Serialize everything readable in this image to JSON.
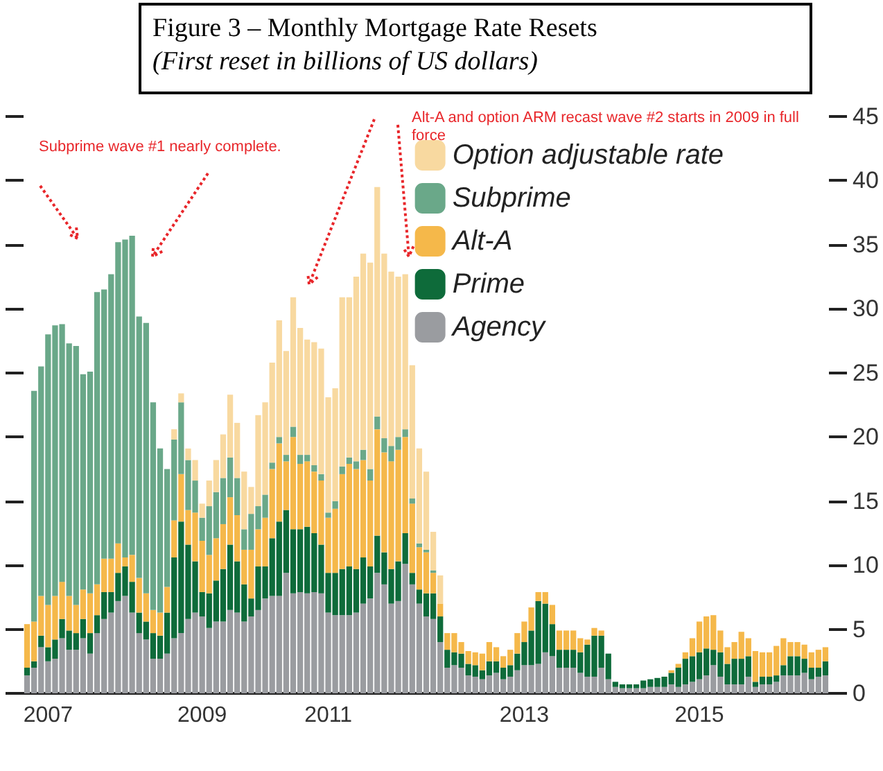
{
  "chart_data": {
    "type": "bar",
    "stacked": true,
    "title": "Figure 3 – Monthly Mortgage Rate Resets",
    "subtitle": "(First reset in billions of US dollars)",
    "categories": [
      null,
      null,
      null,
      "2007",
      null,
      null,
      null,
      null,
      null,
      null,
      null,
      null,
      null,
      null,
      null,
      null,
      null,
      null,
      null,
      null,
      null,
      null,
      null,
      null,
      null,
      "2009",
      null,
      null,
      null,
      null,
      null,
      null,
      null,
      null,
      null,
      null,
      null,
      null,
      null,
      null,
      null,
      null,
      null,
      "2011",
      null,
      null,
      null,
      null,
      null,
      null,
      null,
      null,
      null,
      null,
      null,
      null,
      null,
      null,
      null,
      null,
      null,
      null,
      null,
      null,
      null,
      null,
      null,
      null,
      null,
      null,
      null,
      "2013",
      null,
      null,
      null,
      null,
      null,
      null,
      null,
      null,
      null,
      null,
      null,
      null,
      null,
      null,
      null,
      null,
      null,
      null,
      null,
      null,
      null,
      null,
      null,
      null,
      "2015",
      null,
      null,
      null,
      null,
      null,
      null,
      null,
      null,
      null,
      null,
      null,
      null,
      null,
      null,
      null,
      null,
      null,
      null
    ],
    "series": [
      {
        "name": "Agency",
        "color": "#9a9ca0",
        "values": [
          1.4,
          2.0,
          3.6,
          2.5,
          2.7,
          4.3,
          3.4,
          3.4,
          4.3,
          3.1,
          4.7,
          5.8,
          6.3,
          7.2,
          7.6,
          6.3,
          4.7,
          4.2,
          2.7,
          2.7,
          3.1,
          4.3,
          4.7,
          5.8,
          6.3,
          6.0,
          5.1,
          5.6,
          5.6,
          6.5,
          6.3,
          5.6,
          6.0,
          6.5,
          7.4,
          7.6,
          7.6,
          9.4,
          7.8,
          7.9,
          7.8,
          7.9,
          7.8,
          6.3,
          6.1,
          6.1,
          6.1,
          6.3,
          7.0,
          7.4,
          9.4,
          8.5,
          7.0,
          7.2,
          10.1,
          8.5,
          7.0,
          6.0,
          5.8,
          4.0,
          2.0,
          2.2,
          2.0,
          1.4,
          1.3,
          1.1,
          1.4,
          1.6,
          1.1,
          1.3,
          1.8,
          2.2,
          2.2,
          2.3,
          3.2,
          2.9,
          2.0,
          2.0,
          2.0,
          1.6,
          1.3,
          1.3,
          2.0,
          1.1,
          0.5,
          0.4,
          0.4,
          0.4,
          0.4,
          0.5,
          0.5,
          0.5,
          0.7,
          0.5,
          0.7,
          0.9,
          1.1,
          1.4,
          2.2,
          1.3,
          0.7,
          0.7,
          0.7,
          1.3,
          0.5,
          0.7,
          0.7,
          0.9,
          1.4,
          1.4,
          1.4,
          1.6,
          1.1,
          1.3,
          1.4
        ]
      },
      {
        "name": "Prime",
        "color": "#0e6b3a",
        "values": [
          0.6,
          0.5,
          0.9,
          1.1,
          1.5,
          1.5,
          1.5,
          1.3,
          1.5,
          1.6,
          1.4,
          2.1,
          1.6,
          2.2,
          2.3,
          2.4,
          1.6,
          1.4,
          2.0,
          1.8,
          3.2,
          6.3,
          8.7,
          5.8,
          4.0,
          1.9,
          2.7,
          3.2,
          4.1,
          5.1,
          4.0,
          2.9,
          1.4,
          3.4,
          2.5,
          4.5,
          5.8,
          4.9,
          5.0,
          4.9,
          5.2,
          4.6,
          3.8,
          3.1,
          3.3,
          3.6,
          3.8,
          3.4,
          3.6,
          2.5,
          2.9,
          2.5,
          2.7,
          3.1,
          2.4,
          0.9,
          1.1,
          1.8,
          2.0,
          2.0,
          1.4,
          1.0,
          1.1,
          0.9,
          0.9,
          0.7,
          1.1,
          0.9,
          0.9,
          0.9,
          1.3,
          1.8,
          2.7,
          4.9,
          3.8,
          2.5,
          1.4,
          1.4,
          1.4,
          1.6,
          2.5,
          3.2,
          2.5,
          2.0,
          0.4,
          0.3,
          0.3,
          0.3,
          0.6,
          0.6,
          0.7,
          0.8,
          0.9,
          1.5,
          2.0,
          2.0,
          2.1,
          2.1,
          1.2,
          1.9,
          1.6,
          2.0,
          2.0,
          1.6,
          0.4,
          0.6,
          0.6,
          0.5,
          0.8,
          1.5,
          1.5,
          1.1,
          0.9,
          0.7,
          1.1
        ]
      },
      {
        "name": "Alt-A",
        "color": "#f5b84a",
        "values": [
          3.4,
          3.1,
          3.1,
          3.3,
          3.4,
          2.9,
          2.7,
          2.2,
          2.3,
          3.1,
          2.4,
          2.6,
          2.6,
          2.3,
          0.7,
          2.1,
          2.7,
          2.2,
          1.8,
          1.8,
          2.0,
          2.9,
          3.7,
          2.7,
          3.8,
          4.0,
          3.0,
          3.3,
          3.5,
          3.7,
          3.6,
          2.7,
          3.8,
          2.9,
          3.8,
          5.4,
          6.1,
          3.8,
          7.2,
          5.1,
          5.1,
          4.8,
          5.0,
          4.3,
          5.0,
          7.4,
          8.0,
          7.8,
          7.6,
          6.7,
          8.3,
          7.8,
          8.4,
          8.7,
          7.5,
          5.4,
          3.3,
          3.2,
          1.6,
          1.0,
          1.3,
          1.5,
          0.9,
          1.0,
          1.0,
          1.3,
          1.5,
          1.1,
          0.9,
          1.2,
          1.6,
          1.6,
          1.8,
          0.7,
          0.9,
          1.5,
          1.5,
          1.5,
          1.5,
          1.1,
          0.4,
          0.6,
          0.4,
          0,
          0,
          0,
          0,
          0,
          0,
          0,
          0,
          0,
          0.2,
          0.3,
          0.5,
          1.4,
          2.4,
          2.5,
          2.7,
          1.7,
          1.3,
          1.3,
          2.1,
          1.4,
          2.4,
          1.9,
          1.9,
          2.3,
          2.1,
          1.1,
          1.1,
          1.1,
          1.2,
          1.4,
          1.1
        ]
      },
      {
        "name": "Subprime",
        "color": "#6aa889",
        "values": [
          0,
          18.0,
          17.9,
          21.1,
          21.1,
          20.1,
          19.7,
          20.2,
          16.8,
          17.3,
          22.8,
          21.0,
          22.2,
          23.5,
          24.8,
          24.9,
          20.4,
          21.1,
          16.2,
          12.8,
          9.2,
          6.3,
          5.6,
          3.9,
          2.5,
          1.8,
          3.8,
          3.6,
          3.6,
          3.1,
          2.9,
          1.6,
          2.8,
          1.8,
          1.8,
          0.5,
          0.5,
          0.5,
          0.8,
          0.7,
          0.5,
          0.5,
          0.5,
          0.4,
          0.6,
          0.6,
          0.5,
          0.6,
          0.8,
          0.9,
          1.0,
          1.1,
          1.2,
          1.0,
          0.6,
          0.4,
          0.3,
          0.2,
          0.2,
          0,
          0,
          0,
          0,
          0,
          0,
          0,
          0,
          0,
          0,
          0,
          0,
          0,
          0,
          0,
          0,
          0,
          0,
          0,
          0,
          0,
          0,
          0,
          0,
          0,
          0,
          0,
          0,
          0,
          0,
          0,
          0,
          0,
          0,
          0,
          0,
          0,
          0,
          0,
          0,
          0,
          0,
          0,
          0,
          0,
          0,
          0,
          0,
          0,
          0,
          0,
          0,
          0,
          0,
          0,
          0
        ]
      },
      {
        "name": "Option adjustable rate",
        "color": "#f8d9a0",
        "values": [
          0,
          0,
          0,
          0,
          0,
          0,
          0,
          0,
          0,
          0,
          0,
          0,
          0,
          0,
          0,
          0,
          0,
          0,
          0,
          0,
          0,
          0.8,
          0.7,
          0.9,
          1.6,
          1.1,
          2.0,
          2.5,
          3.4,
          4.9,
          4.3,
          4.5,
          2.1,
          7.1,
          7.2,
          7.8,
          9.1,
          8.1,
          10.1,
          9.9,
          9.0,
          9.6,
          9.8,
          9.0,
          8.8,
          13.2,
          12.5,
          14.4,
          15.3,
          16.1,
          17.9,
          14.4,
          13.6,
          12.5,
          12.1,
          10.4,
          7.4,
          6.1,
          3.0,
          2.2,
          0,
          0,
          0,
          0,
          0,
          0,
          0,
          0,
          0,
          0,
          0,
          0,
          0,
          0,
          0,
          0,
          0,
          0,
          0,
          0,
          0,
          0,
          0,
          0,
          0,
          0,
          0,
          0,
          0,
          0,
          0,
          0,
          0,
          0,
          0,
          0,
          0,
          0,
          0,
          0,
          0,
          0,
          0,
          0,
          0,
          0,
          0,
          0,
          0,
          0,
          0,
          0,
          0,
          0,
          0
        ]
      }
    ],
    "ylim": [
      0,
      45
    ],
    "yticks": [
      0,
      5,
      10,
      15,
      20,
      25,
      30,
      35,
      40,
      45
    ],
    "annotations": [
      "Subprime wave #1 nearly complete.",
      "Alt-A and option ARM recast wave #2 starts in 2009 in full force"
    ],
    "legend": "top right",
    "grid": false
  }
}
